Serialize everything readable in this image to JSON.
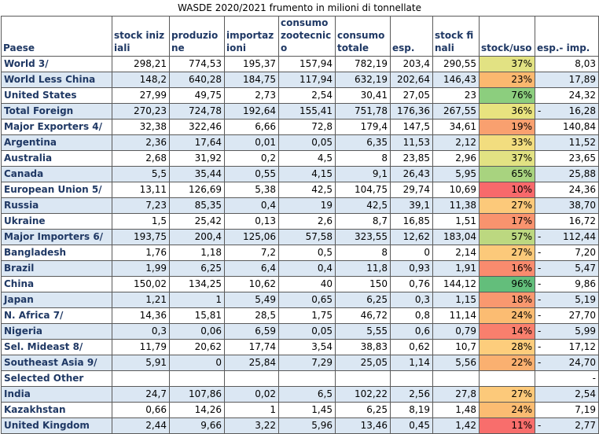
{
  "title": "WASDE 2020/2021 frumento in milioni di tonnellate",
  "columns": [
    "Paese",
    "stock iniziali",
    "produzione",
    "importazioni",
    "consumo zootecnico",
    "consumo totale",
    "esp.",
    "stock finali",
    "stock/uso",
    "esp.- imp."
  ],
  "colors": {
    "header_text": "#1f3864",
    "row_stripe": "#dbe7f3",
    "border": "#5a5a5a"
  },
  "rows": [
    {
      "name": "World  3/",
      "stock_iniziali": "298,21",
      "produzione": "774,53",
      "importazioni": "195,37",
      "consumo_zootecnico": "157,94",
      "consumo_totale": "782,19",
      "esp": "203,4",
      "stock_finali": "290,55",
      "stock_uso": "37%",
      "stock_uso_color": "#e2e283",
      "esp_imp": "8,03",
      "neg": false
    },
    {
      "name": "World Less China",
      "stock_iniziali": "148,2",
      "produzione": "640,28",
      "importazioni": "184,75",
      "consumo_zootecnico": "117,94",
      "consumo_totale": "632,19",
      "esp": "202,64",
      "stock_finali": "146,43",
      "stock_uso": "23%",
      "stock_uso_color": "#fbb86f",
      "esp_imp": "17,89",
      "neg": false
    },
    {
      "name": "United States",
      "stock_iniziali": "27,99",
      "produzione": "49,75",
      "importazioni": "2,73",
      "consumo_zootecnico": "2,54",
      "consumo_totale": "30,41",
      "esp": "27,05",
      "stock_finali": "23",
      "stock_uso": "76%",
      "stock_uso_color": "#8cce7e",
      "esp_imp": "24,32",
      "neg": false
    },
    {
      "name": "Total Foreign",
      "stock_iniziali": "270,23",
      "produzione": "724,78",
      "importazioni": "192,64",
      "consumo_zootecnico": "155,41",
      "consumo_totale": "751,78",
      "esp": "176,36",
      "stock_finali": "267,55",
      "stock_uso": "36%",
      "stock_uso_color": "#e8e37f",
      "esp_imp": "16,28",
      "neg": true
    },
    {
      "name": "Major Exporters  4/",
      "stock_iniziali": "32,38",
      "produzione": "322,46",
      "importazioni": "6,66",
      "consumo_zootecnico": "72,8",
      "consumo_totale": "179,4",
      "esp": "147,5",
      "stock_finali": "34,61",
      "stock_uso": "19%",
      "stock_uso_color": "#f9a06f",
      "esp_imp": "140,84",
      "neg": false
    },
    {
      "name": "Argentina",
      "stock_iniziali": "2,36",
      "produzione": "17,64",
      "importazioni": "0,01",
      "consumo_zootecnico": "0,05",
      "consumo_totale": "6,35",
      "esp": "11,53",
      "stock_finali": "2,12",
      "stock_uso": "33%",
      "stock_uso_color": "#f2dd7f",
      "esp_imp": "11,52",
      "neg": false
    },
    {
      "name": "Australia",
      "stock_iniziali": "2,68",
      "produzione": "31,92",
      "importazioni": "0,2",
      "consumo_zootecnico": "4,5",
      "consumo_totale": "8",
      "esp": "23,85",
      "stock_finali": "2,96",
      "stock_uso": "37%",
      "stock_uso_color": "#e2e283",
      "esp_imp": "23,65",
      "neg": false
    },
    {
      "name": "Canada",
      "stock_iniziali": "5,5",
      "produzione": "35,44",
      "importazioni": "0,55",
      "consumo_zootecnico": "4,15",
      "consumo_totale": "9,1",
      "esp": "26,43",
      "stock_finali": "5,95",
      "stock_uso": "65%",
      "stock_uso_color": "#a8d37f",
      "esp_imp": "25,88",
      "neg": false
    },
    {
      "name": "European Union  5/",
      "stock_iniziali": "13,11",
      "produzione": "126,69",
      "importazioni": "5,38",
      "consumo_zootecnico": "42,5",
      "consumo_totale": "104,75",
      "esp": "29,74",
      "stock_finali": "10,69",
      "stock_uso": "10%",
      "stock_uso_color": "#f8696b",
      "esp_imp": "24,36",
      "neg": false
    },
    {
      "name": "Russia",
      "stock_iniziali": "7,23",
      "produzione": "85,35",
      "importazioni": "0,4",
      "consumo_zootecnico": "19",
      "consumo_totale": "42,5",
      "esp": "39,1",
      "stock_finali": "11,38",
      "stock_uso": "27%",
      "stock_uso_color": "#fcc97a",
      "esp_imp": "38,70",
      "neg": false
    },
    {
      "name": "Ukraine",
      "stock_iniziali": "1,5",
      "produzione": "25,42",
      "importazioni": "0,13",
      "consumo_zootecnico": "2,6",
      "consumo_totale": "8,7",
      "esp": "16,85",
      "stock_finali": "1,51",
      "stock_uso": "17%",
      "stock_uso_color": "#f9936e",
      "esp_imp": "16,72",
      "neg": false
    },
    {
      "name": "Major Importers  6/",
      "stock_iniziali": "193,75",
      "produzione": "200,4",
      "importazioni": "125,06",
      "consumo_zootecnico": "57,58",
      "consumo_totale": "323,55",
      "esp": "12,62",
      "stock_finali": "183,04",
      "stock_uso": "57%",
      "stock_uso_color": "#bcd880",
      "esp_imp": "112,44",
      "neg": true
    },
    {
      "name": "Bangladesh",
      "stock_iniziali": "1,76",
      "produzione": "1,18",
      "importazioni": "7,2",
      "consumo_zootecnico": "0,5",
      "consumo_totale": "8",
      "esp": "0",
      "stock_finali": "2,14",
      "stock_uso": "27%",
      "stock_uso_color": "#fcc97a",
      "esp_imp": "7,20",
      "neg": true
    },
    {
      "name": "Brazil",
      "stock_iniziali": "1,99",
      "produzione": "6,25",
      "importazioni": "6,4",
      "consumo_zootecnico": "0,4",
      "consumo_totale": "11,8",
      "esp": "0,93",
      "stock_finali": "1,91",
      "stock_uso": "16%",
      "stock_uso_color": "#f98b6e",
      "esp_imp": "5,47",
      "neg": true
    },
    {
      "name": "China",
      "stock_iniziali": "150,02",
      "produzione": "134,25",
      "importazioni": "10,62",
      "consumo_zootecnico": "40",
      "consumo_totale": "150",
      "esp": "0,76",
      "stock_finali": "144,12",
      "stock_uso": "96%",
      "stock_uso_color": "#63be7b",
      "esp_imp": "9,86",
      "neg": true
    },
    {
      "name": "Japan",
      "stock_iniziali": "1,21",
      "produzione": "1",
      "importazioni": "5,49",
      "consumo_zootecnico": "0,65",
      "consumo_totale": "6,25",
      "esp": "0,3",
      "stock_finali": "1,15",
      "stock_uso": "18%",
      "stock_uso_color": "#f9986f",
      "esp_imp": "5,19",
      "neg": true
    },
    {
      "name": "N. Africa  7/",
      "stock_iniziali": "14,36",
      "produzione": "15,81",
      "importazioni": "28,5",
      "consumo_zootecnico": "1,75",
      "consumo_totale": "46,72",
      "esp": "0,8",
      "stock_finali": "11,14",
      "stock_uso": "24%",
      "stock_uso_color": "#fbbc72",
      "esp_imp": "27,70",
      "neg": true
    },
    {
      "name": "Nigeria",
      "stock_iniziali": "0,3",
      "produzione": "0,06",
      "importazioni": "6,59",
      "consumo_zootecnico": "0,05",
      "consumo_totale": "5,55",
      "esp": "0,6",
      "stock_finali": "0,79",
      "stock_uso": "14%",
      "stock_uso_color": "#f97f6d",
      "esp_imp": "5,99",
      "neg": true
    },
    {
      "name": "Sel. Mideast  8/",
      "stock_iniziali": "11,79",
      "produzione": "20,62",
      "importazioni": "17,74",
      "consumo_zootecnico": "3,54",
      "consumo_totale": "38,83",
      "esp": "0,62",
      "stock_finali": "10,7",
      "stock_uso": "28%",
      "stock_uso_color": "#fdcd7c",
      "esp_imp": "17,12",
      "neg": true
    },
    {
      "name": "Southeast Asia  9/",
      "stock_iniziali": "5,91",
      "produzione": "0",
      "importazioni": "25,84",
      "consumo_zootecnico": "7,29",
      "consumo_totale": "25,05",
      "esp": "1,14",
      "stock_finali": "5,56",
      "stock_uso": "22%",
      "stock_uso_color": "#fab070",
      "esp_imp": "24,70",
      "neg": true
    },
    {
      "name": "Selected Other",
      "stock_iniziali": "",
      "produzione": "",
      "importazioni": "",
      "consumo_zootecnico": "",
      "consumo_totale": "",
      "esp": "",
      "stock_finali": "",
      "stock_uso": "",
      "stock_uso_color": "",
      "esp_imp": "-",
      "neg": false
    },
    {
      "name": "India",
      "stock_iniziali": "24,7",
      "produzione": "107,86",
      "importazioni": "0,02",
      "consumo_zootecnico": "6,5",
      "consumo_totale": "102,22",
      "esp": "2,56",
      "stock_finali": "27,8",
      "stock_uso": "27%",
      "stock_uso_color": "#fcc97a",
      "esp_imp": "2,54",
      "neg": false
    },
    {
      "name": "Kazakhstan",
      "stock_iniziali": "0,66",
      "produzione": "14,26",
      "importazioni": "1",
      "consumo_zootecnico": "1,45",
      "consumo_totale": "6,25",
      "esp": "8,19",
      "stock_finali": "1,48",
      "stock_uso": "24%",
      "stock_uso_color": "#fbbc72",
      "esp_imp": "7,19",
      "neg": false
    },
    {
      "name": "United Kingdom",
      "stock_iniziali": "2,44",
      "produzione": "9,66",
      "importazioni": "3,22",
      "consumo_zootecnico": "5,96",
      "consumo_totale": "13,46",
      "esp": "0,45",
      "stock_finali": "1,42",
      "stock_uso": "11%",
      "stock_uso_color": "#f86e6c",
      "esp_imp": "2,77",
      "neg": true
    }
  ]
}
